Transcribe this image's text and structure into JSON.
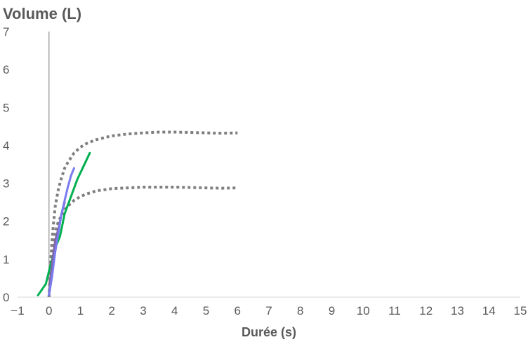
{
  "chart_data": {
    "type": "line",
    "title": "Volume (L)",
    "xlabel": "Durée (s)",
    "ylabel": "",
    "xlim": [
      -1,
      15
    ],
    "ylim": [
      0,
      7
    ],
    "x_ticks": [
      -1,
      0,
      1,
      2,
      3,
      4,
      5,
      6,
      7,
      8,
      9,
      10,
      11,
      12,
      13,
      14,
      15
    ],
    "y_ticks": [
      0,
      1,
      2,
      3,
      4,
      5,
      6,
      7
    ],
    "grid": false,
    "legend": "none",
    "y_axis_line_at_x": 0,
    "series": [
      {
        "style": "dotted",
        "color": "#7f7f7f",
        "x": [
          0.0,
          0.03,
          0.06,
          0.1,
          0.15,
          0.2,
          0.3,
          0.4,
          0.5,
          0.6,
          0.8,
          1.0,
          1.2,
          1.5,
          2.0,
          2.5,
          3.0,
          3.5,
          4.0,
          4.5,
          5.0,
          5.5,
          6.0
        ],
        "y": [
          0.0,
          0.5,
          1.0,
          1.5,
          2.0,
          2.4,
          2.85,
          3.15,
          3.4,
          3.55,
          3.8,
          3.95,
          4.05,
          4.15,
          4.25,
          4.3,
          4.33,
          4.35,
          4.35,
          4.34,
          4.33,
          4.32,
          4.33
        ]
      },
      {
        "style": "dotted",
        "color": "#7f7f7f",
        "x": [
          0.0,
          0.03,
          0.06,
          0.1,
          0.15,
          0.2,
          0.3,
          0.4,
          0.5,
          0.6,
          0.8,
          1.0,
          1.2,
          1.5,
          2.0,
          2.5,
          3.0,
          3.5,
          4.0,
          4.5,
          5.0,
          5.5,
          6.0
        ],
        "y": [
          0.0,
          0.35,
          0.7,
          1.05,
          1.4,
          1.7,
          2.0,
          2.15,
          2.3,
          2.4,
          2.55,
          2.65,
          2.72,
          2.8,
          2.86,
          2.88,
          2.9,
          2.9,
          2.9,
          2.89,
          2.88,
          2.87,
          2.88
        ]
      },
      {
        "style": "solid",
        "color": "#00b050",
        "x": [
          -0.35,
          -0.1,
          0.05,
          0.2,
          0.35,
          0.5,
          0.7,
          0.9,
          1.1,
          1.3
        ],
        "y": [
          0.05,
          0.35,
          0.85,
          1.3,
          1.6,
          2.2,
          2.65,
          3.1,
          3.45,
          3.8
        ]
      },
      {
        "style": "solid",
        "color": "#8064a2",
        "x": [
          0.0,
          0.1,
          0.2,
          0.3,
          0.4,
          0.5
        ],
        "y": [
          0.1,
          0.9,
          1.5,
          1.8,
          2.2,
          2.5
        ]
      },
      {
        "style": "solid",
        "color": "#7b7bf0",
        "x": [
          0.0,
          0.1,
          0.2,
          0.3,
          0.4,
          0.5,
          0.6,
          0.7,
          0.8
        ],
        "y": [
          0.05,
          0.55,
          1.2,
          1.7,
          2.2,
          2.55,
          2.9,
          3.2,
          3.4
        ]
      }
    ]
  }
}
